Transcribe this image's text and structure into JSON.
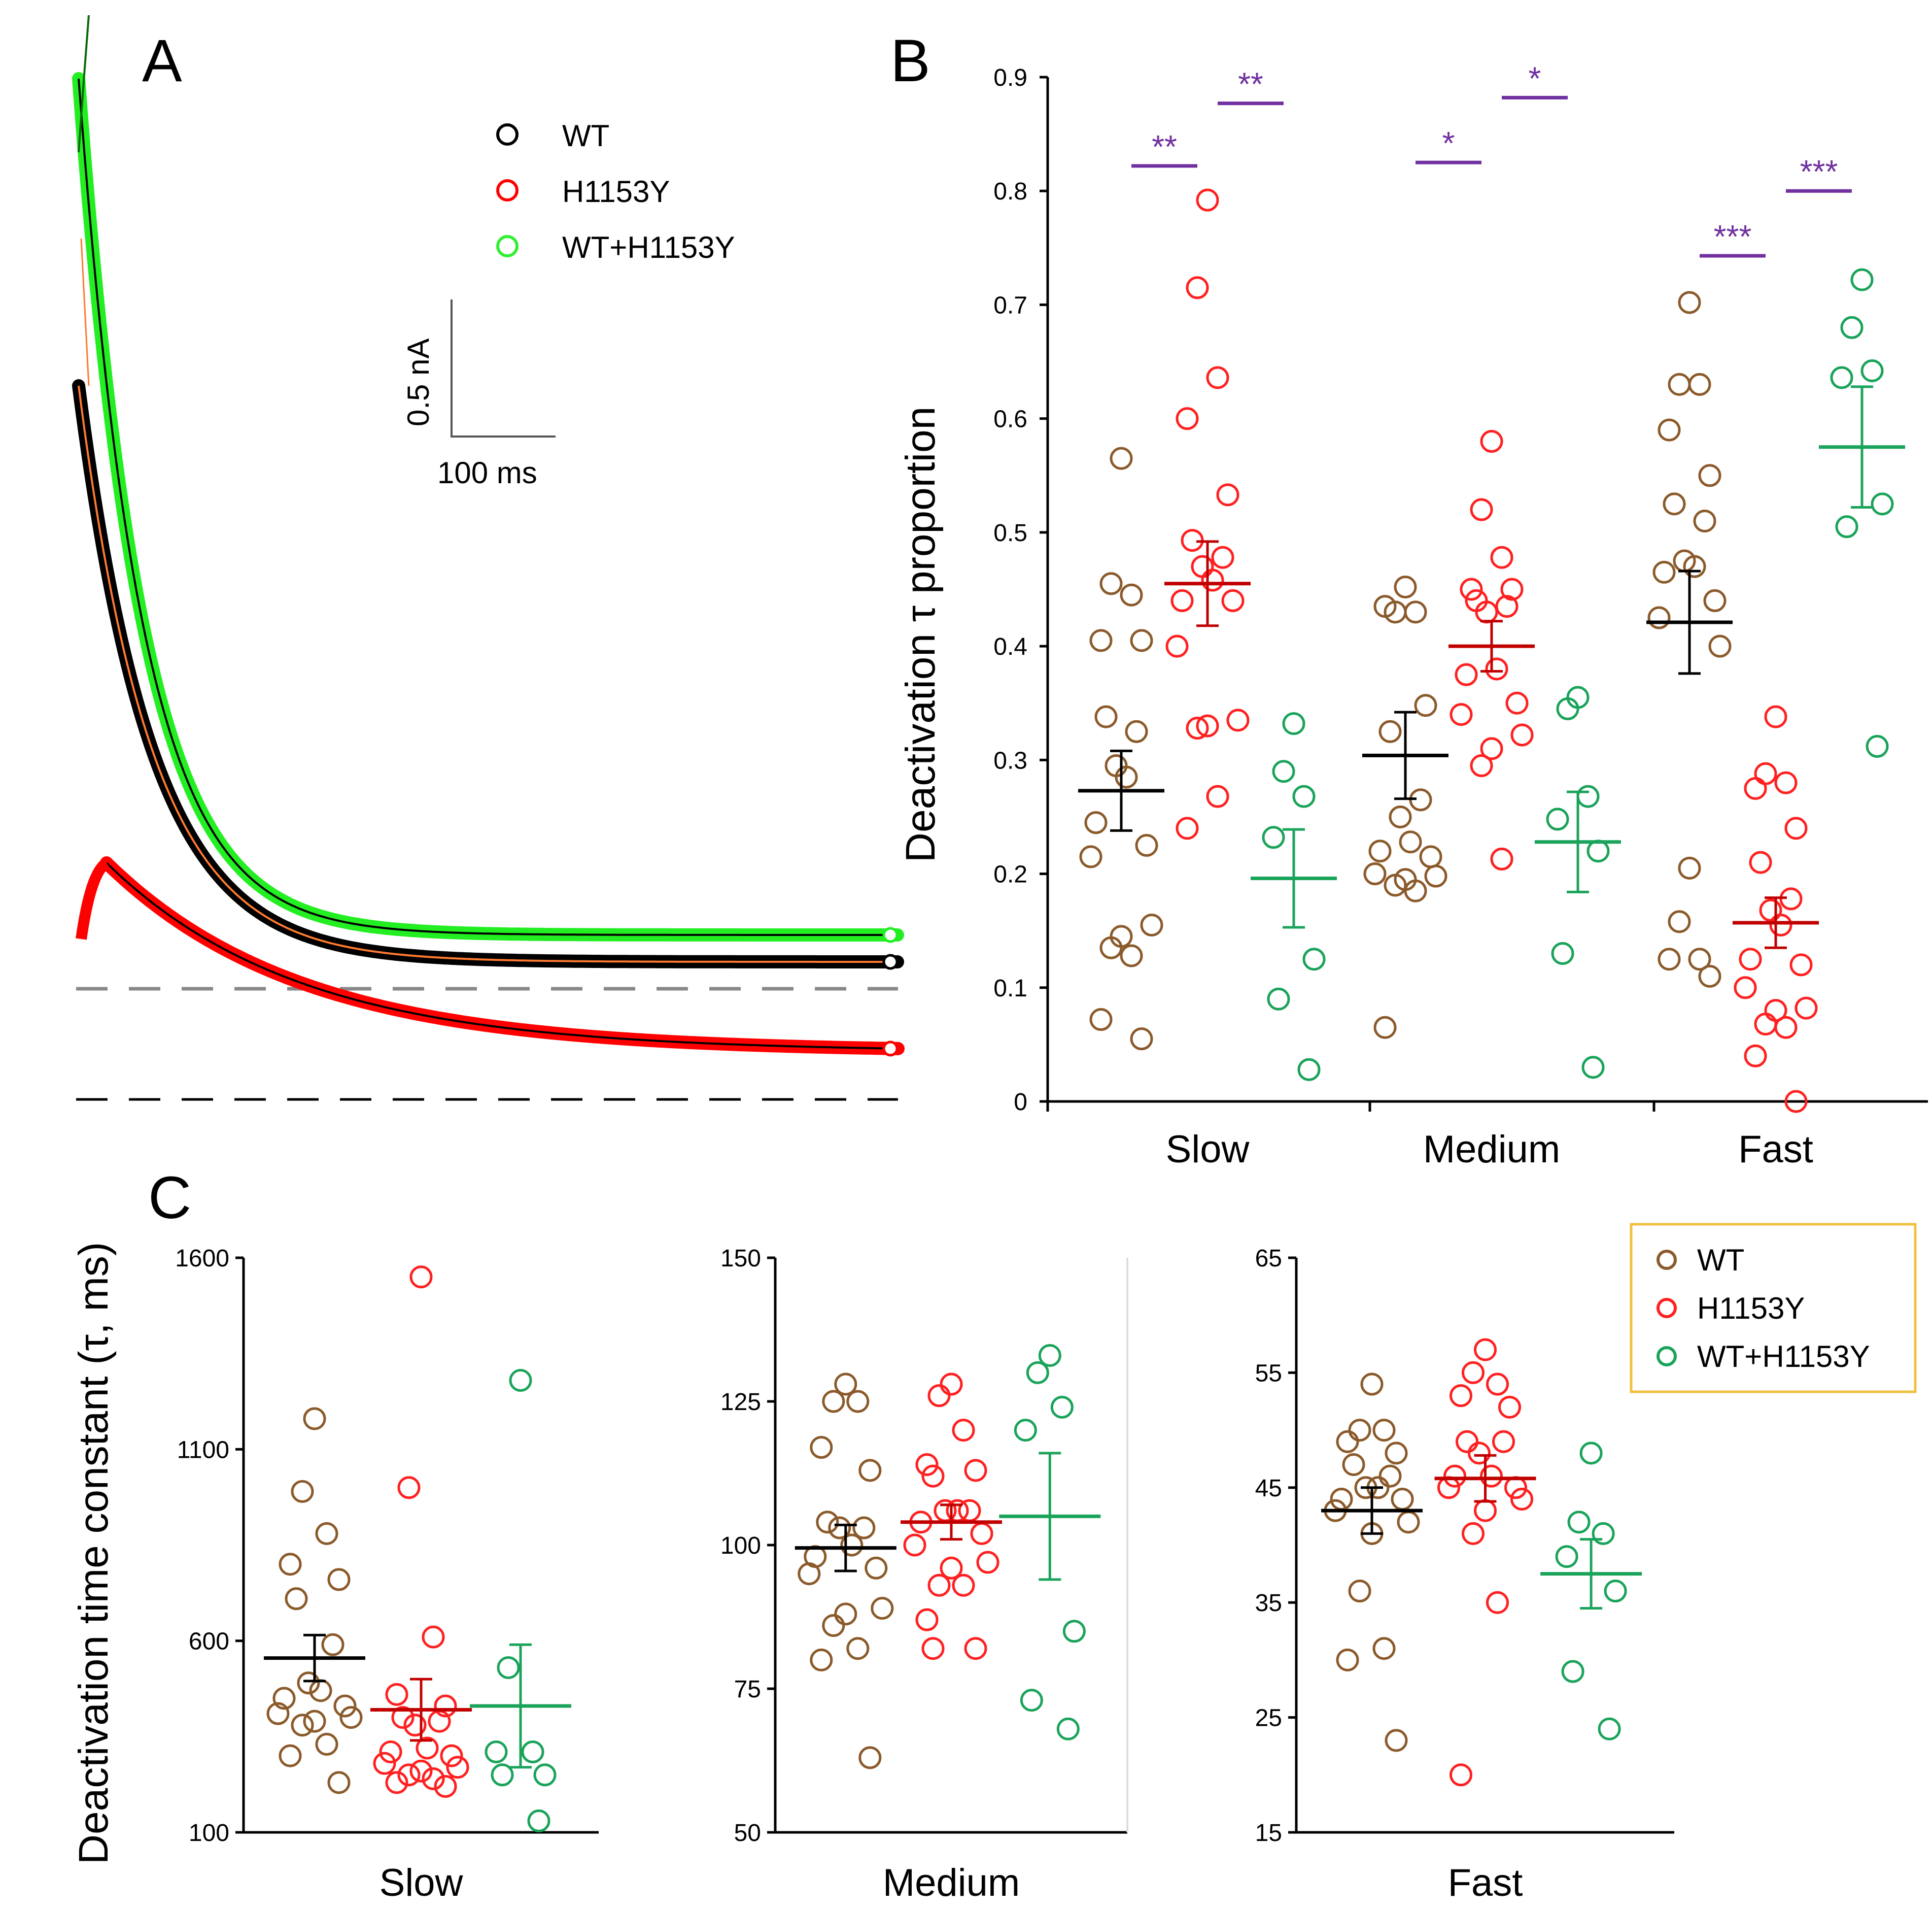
{
  "colors": {
    "wt_trace": "#000000",
    "h1153y_trace": "#ff0000",
    "wtplus_trace": "#00dd00",
    "wt_points": "#8b5a2b",
    "h1153y_points": "#ff2020",
    "wtplus_points": "#1aa35a",
    "wt_mean": "#000000",
    "h1153y_mean": "#c00000",
    "wtplus_mean": "#1aa35a",
    "sig_bar": "#7030a0",
    "legend_border": "#f0c040"
  },
  "panel_a": {
    "label": "A",
    "legend": [
      "WT",
      "H1153Y",
      "WT+H1153Y"
    ],
    "scale_current": "0.5 nA",
    "scale_time": "100 ms"
  },
  "chart_data": [
    {
      "id": "B",
      "type": "scatter",
      "label": "B",
      "ylabel": "Deactivation τ proportion",
      "ylim": [
        0,
        0.9
      ],
      "yticks": [
        "0",
        "0.1",
        "0.2",
        "0.3",
        "0.4",
        "0.5",
        "0.6",
        "0.7",
        "0.8",
        "0.9"
      ],
      "categories": [
        "Slow",
        "Medium",
        "Fast"
      ],
      "series": [
        {
          "name": "WT",
          "values": [
            [
              0.565,
              0.455,
              0.445,
              0.405,
              0.405,
              0.338,
              0.325,
              0.295,
              0.285,
              0.245,
              0.225,
              0.215,
              0.155,
              0.145,
              0.135,
              0.128,
              0.072,
              0.055
            ],
            [
              0.452,
              0.43,
              0.43,
              0.435,
              0.348,
              0.325,
              0.265,
              0.25,
              0.228,
              0.22,
              0.215,
              0.2,
              0.198,
              0.195,
              0.19,
              0.185,
              0.065
            ],
            [
              0.702,
              0.63,
              0.63,
              0.59,
              0.55,
              0.525,
              0.51,
              0.475,
              0.47,
              0.465,
              0.44,
              0.425,
              0.4,
              0.205,
              0.158,
              0.125,
              0.125,
              0.11
            ]
          ],
          "mean": [
            0.273,
            0.304,
            0.421
          ],
          "sem": [
            0.035,
            0.038,
            0.045
          ]
        },
        {
          "name": "H1153Y",
          "values": [
            [
              0.792,
              0.715,
              0.636,
              0.6,
              0.533,
              0.493,
              0.478,
              0.47,
              0.458,
              0.44,
              0.44,
              0.4,
              0.335,
              0.33,
              0.328,
              0.268,
              0.24
            ],
            [
              0.58,
              0.52,
              0.478,
              0.45,
              0.45,
              0.44,
              0.435,
              0.43,
              0.38,
              0.375,
              0.35,
              0.34,
              0.322,
              0.31,
              0.295,
              0.213
            ],
            [
              0.338,
              0.288,
              0.28,
              0.275,
              0.24,
              0.21,
              0.178,
              0.168,
              0.155,
              0.125,
              0.12,
              0.1,
              0.082,
              0.08,
              0.068,
              0.065,
              0.04,
              0.0
            ]
          ],
          "mean": [
            0.455,
            0.4,
            0.157
          ],
          "sem": [
            0.037,
            0.022,
            0.022
          ]
        },
        {
          "name": "WT+H1153Y",
          "values": [
            [
              0.332,
              0.29,
              0.268,
              0.232,
              0.125,
              0.09,
              0.028
            ],
            [
              0.355,
              0.345,
              0.268,
              0.248,
              0.22,
              0.13,
              0.03
            ],
            [
              0.722,
              0.68,
              0.642,
              0.636,
              0.525,
              0.505,
              0.312
            ]
          ],
          "mean": [
            0.196,
            0.228,
            0.575
          ],
          "sem": [
            0.043,
            0.044,
            0.053
          ]
        }
      ],
      "significance": [
        {
          "label": "**",
          "category": "Slow",
          "y": 0.822,
          "pair": "WT-H1153Y"
        },
        {
          "label": "**",
          "category": "Slow",
          "y": 0.877,
          "pair": "H1153Y-WT+H1153Y"
        },
        {
          "label": "*",
          "category": "Medium",
          "y": 0.825,
          "pair": "WT-H1153Y"
        },
        {
          "label": "*",
          "category": "Medium",
          "y": 0.882,
          "pair": "H1153Y-WT+H1153Y"
        },
        {
          "label": "***",
          "category": "Fast",
          "y": 0.743,
          "pair": "WT-H1153Y"
        },
        {
          "label": "***",
          "category": "Fast",
          "y": 0.8,
          "pair": "H1153Y-WT+H1153Y"
        }
      ]
    },
    {
      "id": "C-slow",
      "type": "scatter",
      "title": "Slow",
      "ylim": [
        100,
        1600
      ],
      "yticks": [
        "100",
        "600",
        "1100",
        "1600"
      ],
      "series": [
        {
          "name": "WT",
          "values": [
            1180,
            990,
            880,
            800,
            760,
            710,
            590,
            490,
            470,
            450,
            430,
            410,
            400,
            390,
            380,
            330,
            300,
            230
          ],
          "mean": 555,
          "sem": 60
        },
        {
          "name": "H1153Y",
          "values": [
            1550,
            1000,
            610,
            460,
            430,
            400,
            390,
            380,
            320,
            310,
            300,
            280,
            270,
            260,
            250,
            240,
            230,
            220
          ],
          "mean": 420,
          "sem": 80
        },
        {
          "name": "WT+H1153Y",
          "values": [
            1280,
            530,
            310,
            310,
            250,
            250,
            130
          ],
          "mean": 430,
          "sem": 160
        }
      ]
    },
    {
      "id": "C-medium",
      "type": "scatter",
      "title": "Medium",
      "ylim": [
        50,
        150
      ],
      "yticks": [
        "50",
        "75",
        "100",
        "125",
        "150"
      ],
      "series": [
        {
          "name": "WT",
          "values": [
            128,
            125,
            125,
            117,
            113,
            104,
            103,
            103,
            100,
            98,
            96,
            95,
            89,
            88,
            86,
            82,
            80,
            63
          ],
          "mean": 99.5,
          "sem": 4
        },
        {
          "name": "H1153Y",
          "values": [
            128,
            126,
            120,
            114,
            113,
            112,
            106,
            106,
            106,
            104,
            102,
            100,
            97,
            96,
            93,
            93,
            87,
            82,
            82
          ],
          "mean": 104,
          "sem": 3
        },
        {
          "name": "WT+H1153Y",
          "values": [
            133,
            130,
            124,
            120,
            85,
            73,
            68
          ],
          "mean": 105,
          "sem": 11
        }
      ]
    },
    {
      "id": "C-fast",
      "type": "scatter",
      "title": "Fast",
      "ylim": [
        15,
        65
      ],
      "yticks": [
        "15",
        "25",
        "35",
        "45",
        "55",
        "65"
      ],
      "series": [
        {
          "name": "WT",
          "values": [
            54,
            50,
            50,
            49,
            48,
            47,
            46,
            45,
            45,
            44,
            44,
            43,
            42,
            41,
            36,
            31,
            30,
            23
          ],
          "mean": 43,
          "sem": 2
        },
        {
          "name": "H1153Y",
          "values": [
            57,
            55,
            54,
            53,
            52,
            49,
            49,
            48,
            46,
            46,
            45,
            45,
            44,
            43,
            41,
            35,
            20
          ],
          "mean": 45.8,
          "sem": 2
        },
        {
          "name": "WT+H1153Y",
          "values": [
            48,
            42,
            41,
            39,
            36,
            29,
            24
          ],
          "mean": 37.5,
          "sem": 3
        }
      ]
    }
  ],
  "panel_c": {
    "label": "C",
    "ylabel": "Deactivation time constant (τ, ms)",
    "legend": [
      "WT",
      "H1153Y",
      "WT+H1153Y"
    ]
  }
}
